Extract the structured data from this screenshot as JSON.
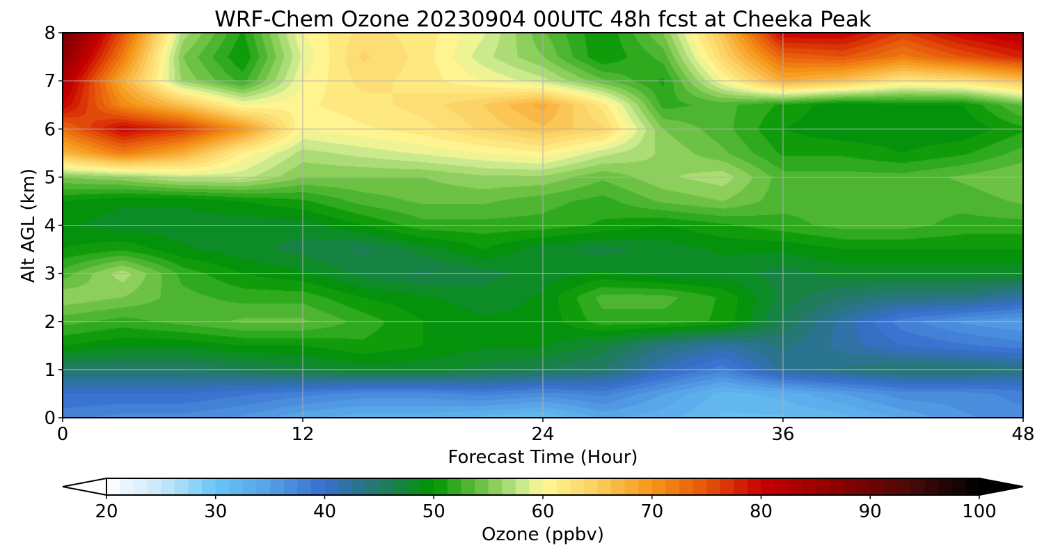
{
  "chart_data": {
    "type": "heatmap",
    "title": "WRF-Chem Ozone  20230904 00UTC 48h fcst at Cheeka Peak",
    "xlabel": "Forecast Time (Hour)",
    "ylabel": "Alt AGL (km)",
    "xlim": [
      0,
      48
    ],
    "ylim": [
      0,
      8
    ],
    "x_ticks": [
      0,
      12,
      24,
      36,
      48
    ],
    "y_ticks": [
      0,
      1,
      2,
      3,
      4,
      5,
      6,
      7,
      8
    ],
    "grid": true,
    "x_hours": [
      0,
      3,
      6,
      9,
      12,
      15,
      18,
      21,
      24,
      27,
      30,
      33,
      36,
      39,
      42,
      45,
      48
    ],
    "z_km": [
      0,
      0.5,
      1,
      1.5,
      2,
      2.5,
      3,
      3.5,
      4,
      4.5,
      5,
      5.5,
      6,
      6.5,
      7,
      7.5,
      8
    ],
    "z_values": [
      [
        38,
        37,
        37,
        36,
        34,
        33,
        33,
        32,
        31,
        34,
        33,
        31,
        31,
        32,
        34,
        36,
        37
      ],
      [
        40,
        40,
        40,
        39,
        38,
        37,
        37,
        38,
        37,
        38,
        35,
        32,
        33,
        35,
        37,
        37,
        38
      ],
      [
        45,
        45,
        45,
        46,
        47,
        48,
        48,
        47,
        46,
        45,
        41,
        38,
        43,
        44,
        45,
        45,
        44
      ],
      [
        50,
        49,
        49,
        50,
        50,
        51,
        50,
        49,
        49,
        47,
        44,
        42,
        44,
        42,
        40,
        39,
        38
      ],
      [
        53,
        52,
        53,
        54,
        54,
        52,
        50,
        49,
        49,
        52,
        52,
        51,
        46,
        42,
        38,
        36,
        35
      ],
      [
        56,
        55,
        53,
        52,
        52,
        50,
        49,
        48,
        49,
        53,
        53,
        51,
        47,
        45,
        44,
        44,
        42
      ],
      [
        53,
        57,
        52,
        50,
        49,
        47,
        46,
        47,
        48,
        49,
        48,
        48,
        47,
        48,
        48,
        48,
        48
      ],
      [
        50,
        51,
        49,
        48,
        47,
        46,
        48,
        50,
        48,
        47,
        48,
        49,
        49,
        50,
        50,
        50,
        50
      ],
      [
        49,
        48,
        48,
        48,
        48,
        50,
        52,
        52,
        52,
        51,
        50,
        51,
        52,
        53,
        53,
        52,
        52
      ],
      [
        50,
        49,
        49,
        50,
        51,
        53,
        54,
        54,
        53,
        52,
        54,
        55,
        53,
        53,
        53,
        53,
        54
      ],
      [
        55,
        56,
        58,
        58,
        55,
        55,
        55,
        56,
        56,
        54,
        56,
        57,
        53,
        53,
        53,
        54,
        55
      ],
      [
        67,
        72,
        68,
        61,
        57,
        58,
        59,
        60,
        61,
        58,
        56,
        54,
        51,
        51,
        50,
        51,
        53
      ],
      [
        73,
        80,
        77,
        70,
        60,
        61,
        62,
        64,
        66,
        64,
        55,
        53,
        50,
        49,
        49,
        49,
        51
      ],
      [
        80,
        71,
        66,
        60,
        61,
        62,
        63,
        65,
        68,
        62,
        52,
        53,
        51,
        49,
        50,
        50,
        54
      ],
      [
        83,
        68,
        56,
        52,
        60,
        63,
        62,
        60,
        58,
        54,
        51,
        60,
        68,
        66,
        62,
        63,
        66
      ],
      [
        87,
        72,
        55,
        50,
        59,
        64,
        62,
        58,
        55,
        50,
        53,
        64,
        74,
        75,
        72,
        75,
        78
      ],
      [
        90,
        75,
        57,
        51,
        60,
        63,
        62,
        59,
        54,
        50,
        55,
        66,
        80,
        80,
        76,
        80,
        82
      ]
    ],
    "colorbar": {
      "label": "Ozone  (ppbv)",
      "min": 20,
      "max": 100,
      "ticks": [
        20,
        30,
        40,
        50,
        60,
        70,
        80,
        90,
        100
      ],
      "extend": "both"
    }
  }
}
